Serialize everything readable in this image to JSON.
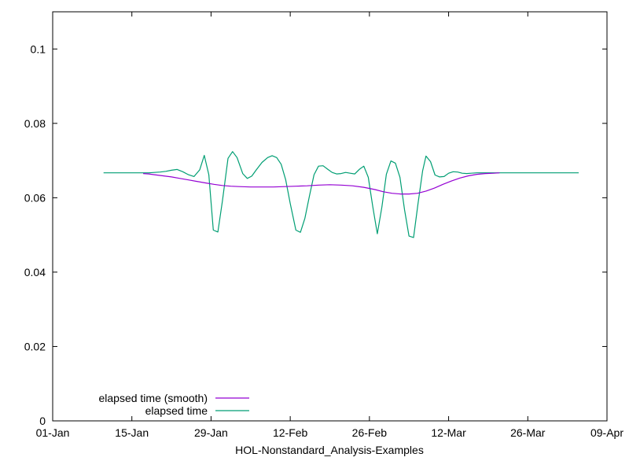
{
  "chart_data": {
    "type": "line",
    "title": "",
    "xlabel": "HOL-Nonstandard_Analysis-Examples",
    "ylabel": "",
    "x_range": [
      "01-Jan",
      "09-Apr"
    ],
    "xlim_days": [
      0,
      98
    ],
    "ylim": [
      0,
      0.11
    ],
    "grid": false,
    "legend_placement": "bottom-left",
    "x_ticks": [
      {
        "day": 0,
        "label": "01-Jan"
      },
      {
        "day": 14,
        "label": "15-Jan"
      },
      {
        "day": 28,
        "label": "29-Jan"
      },
      {
        "day": 42,
        "label": "12-Feb"
      },
      {
        "day": 56,
        "label": "26-Feb"
      },
      {
        "day": 70,
        "label": "12-Mar"
      },
      {
        "day": 84,
        "label": "26-Mar"
      },
      {
        "day": 98,
        "label": "09-Apr"
      }
    ],
    "y_ticks": [
      {
        "value": 0,
        "label": "0"
      },
      {
        "value": 0.02,
        "label": "0.02"
      },
      {
        "value": 0.04,
        "label": "0.04"
      },
      {
        "value": 0.06,
        "label": "0.06"
      },
      {
        "value": 0.08,
        "label": "0.08"
      },
      {
        "value": 0.1,
        "label": "0.1"
      }
    ],
    "series": [
      {
        "name": "elapsed time (smooth)",
        "color": "#9400d3",
        "points": [
          [
            16.0,
            0.0665
          ],
          [
            17.0,
            0.0664
          ],
          [
            18.0,
            0.0662
          ],
          [
            19.5,
            0.0659
          ],
          [
            21.0,
            0.0656
          ],
          [
            22.5,
            0.0652
          ],
          [
            24.0,
            0.0648
          ],
          [
            25.5,
            0.0644
          ],
          [
            27.0,
            0.064
          ],
          [
            28.5,
            0.0636
          ],
          [
            30.0,
            0.0633
          ],
          [
            31.5,
            0.0631
          ],
          [
            33.0,
            0.063
          ],
          [
            35.0,
            0.0629
          ],
          [
            37.0,
            0.0629
          ],
          [
            39.0,
            0.0629
          ],
          [
            41.0,
            0.063
          ],
          [
            43.0,
            0.0631
          ],
          [
            45.0,
            0.0632
          ],
          [
            47.0,
            0.0634
          ],
          [
            49.0,
            0.0635
          ],
          [
            51.0,
            0.0634
          ],
          [
            53.0,
            0.0632
          ],
          [
            55.0,
            0.0628
          ],
          [
            57.0,
            0.0622
          ],
          [
            58.5,
            0.0616
          ],
          [
            60.0,
            0.0612
          ],
          [
            61.5,
            0.061
          ],
          [
            63.0,
            0.061
          ],
          [
            64.5,
            0.0612
          ],
          [
            66.0,
            0.0618
          ],
          [
            67.5,
            0.0626
          ],
          [
            69.0,
            0.0636
          ],
          [
            70.5,
            0.0645
          ],
          [
            72.0,
            0.0653
          ],
          [
            73.5,
            0.0659
          ],
          [
            75.0,
            0.0663
          ],
          [
            76.5,
            0.0665
          ],
          [
            78.0,
            0.0666
          ],
          [
            79.0,
            0.0667
          ]
        ]
      },
      {
        "name": "elapsed time",
        "color": "#009e73",
        "points": [
          [
            9.0,
            0.0667
          ],
          [
            16.0,
            0.0667
          ],
          [
            17.0,
            0.0667
          ],
          [
            18.0,
            0.0668
          ],
          [
            19.0,
            0.0669
          ],
          [
            20.0,
            0.0671
          ],
          [
            21.0,
            0.0674
          ],
          [
            22.0,
            0.0676
          ],
          [
            23.0,
            0.067
          ],
          [
            24.0,
            0.0662
          ],
          [
            25.0,
            0.0657
          ],
          [
            26.0,
            0.0675
          ],
          [
            26.8,
            0.0714
          ],
          [
            27.6,
            0.0662
          ],
          [
            28.4,
            0.0513
          ],
          [
            29.2,
            0.0508
          ],
          [
            30.0,
            0.059
          ],
          [
            31.0,
            0.0706
          ],
          [
            31.8,
            0.0724
          ],
          [
            32.6,
            0.0708
          ],
          [
            33.6,
            0.0665
          ],
          [
            34.4,
            0.0652
          ],
          [
            35.2,
            0.0658
          ],
          [
            36.0,
            0.0675
          ],
          [
            37.0,
            0.0695
          ],
          [
            38.0,
            0.0708
          ],
          [
            38.8,
            0.0713
          ],
          [
            39.6,
            0.0708
          ],
          [
            40.4,
            0.069
          ],
          [
            41.2,
            0.0648
          ],
          [
            42.0,
            0.0585
          ],
          [
            43.0,
            0.0513
          ],
          [
            43.8,
            0.0507
          ],
          [
            44.6,
            0.0545
          ],
          [
            45.4,
            0.0605
          ],
          [
            46.2,
            0.0662
          ],
          [
            47.0,
            0.0685
          ],
          [
            47.8,
            0.0686
          ],
          [
            48.6,
            0.0677
          ],
          [
            49.4,
            0.0668
          ],
          [
            50.2,
            0.0664
          ],
          [
            51.0,
            0.0665
          ],
          [
            51.8,
            0.0668
          ],
          [
            52.6,
            0.0666
          ],
          [
            53.4,
            0.0664
          ],
          [
            54.2,
            0.0676
          ],
          [
            55.0,
            0.0685
          ],
          [
            55.8,
            0.0655
          ],
          [
            56.6,
            0.0575
          ],
          [
            57.4,
            0.0503
          ],
          [
            58.2,
            0.0575
          ],
          [
            59.0,
            0.0663
          ],
          [
            59.8,
            0.0699
          ],
          [
            60.6,
            0.0693
          ],
          [
            61.4,
            0.0655
          ],
          [
            62.2,
            0.0568
          ],
          [
            63.0,
            0.0497
          ],
          [
            63.8,
            0.0493
          ],
          [
            64.6,
            0.0585
          ],
          [
            65.4,
            0.0672
          ],
          [
            66.0,
            0.0712
          ],
          [
            66.8,
            0.0697
          ],
          [
            67.6,
            0.0661
          ],
          [
            68.4,
            0.0656
          ],
          [
            69.2,
            0.0657
          ],
          [
            70.0,
            0.0666
          ],
          [
            70.8,
            0.067
          ],
          [
            71.6,
            0.0669
          ],
          [
            72.4,
            0.0666
          ],
          [
            73.2,
            0.0665
          ],
          [
            74.0,
            0.0666
          ],
          [
            75.0,
            0.0667
          ],
          [
            76.0,
            0.0667
          ],
          [
            78.0,
            0.0667
          ],
          [
            83.0,
            0.0667
          ],
          [
            93.0,
            0.0667
          ]
        ]
      }
    ]
  }
}
